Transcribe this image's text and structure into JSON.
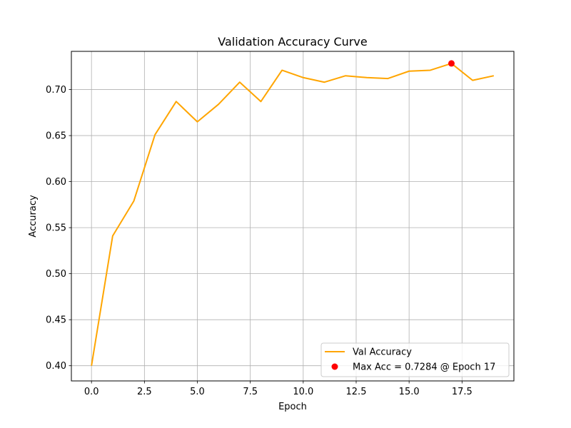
{
  "chart_data": {
    "type": "line",
    "title": "Validation Accuracy Curve",
    "xlabel": "Epoch",
    "ylabel": "Accuracy",
    "xlim": [
      -0.95,
      19.95
    ],
    "ylim": [
      0.3835,
      0.7415
    ],
    "grid": true,
    "legend_position": "lower right",
    "x_ticks": [
      0.0,
      2.5,
      5.0,
      7.5,
      10.0,
      12.5,
      15.0,
      17.5
    ],
    "x_tick_labels": [
      "0.0",
      "2.5",
      "5.0",
      "7.5",
      "10.0",
      "12.5",
      "15.0",
      "17.5"
    ],
    "y_ticks": [
      0.4,
      0.45,
      0.5,
      0.55,
      0.6,
      0.65,
      0.7
    ],
    "y_tick_labels": [
      "0.40",
      "0.45",
      "0.50",
      "0.55",
      "0.60",
      "0.65",
      "0.70"
    ],
    "series": [
      {
        "name": "Val Accuracy",
        "type": "line",
        "color": "#ffa500",
        "x": [
          0,
          1,
          2,
          3,
          4,
          5,
          6,
          7,
          8,
          9,
          10,
          11,
          12,
          13,
          14,
          15,
          16,
          17,
          18,
          19
        ],
        "y": [
          0.4,
          0.541,
          0.579,
          0.651,
          0.687,
          0.665,
          0.684,
          0.708,
          0.687,
          0.721,
          0.713,
          0.708,
          0.715,
          0.713,
          0.712,
          0.72,
          0.721,
          0.7284,
          0.71,
          0.715
        ]
      },
      {
        "name": "Max Acc = 0.7284 @ Epoch 17",
        "type": "scatter",
        "color": "#ff0000",
        "x": [
          17
        ],
        "y": [
          0.7284
        ]
      }
    ]
  }
}
